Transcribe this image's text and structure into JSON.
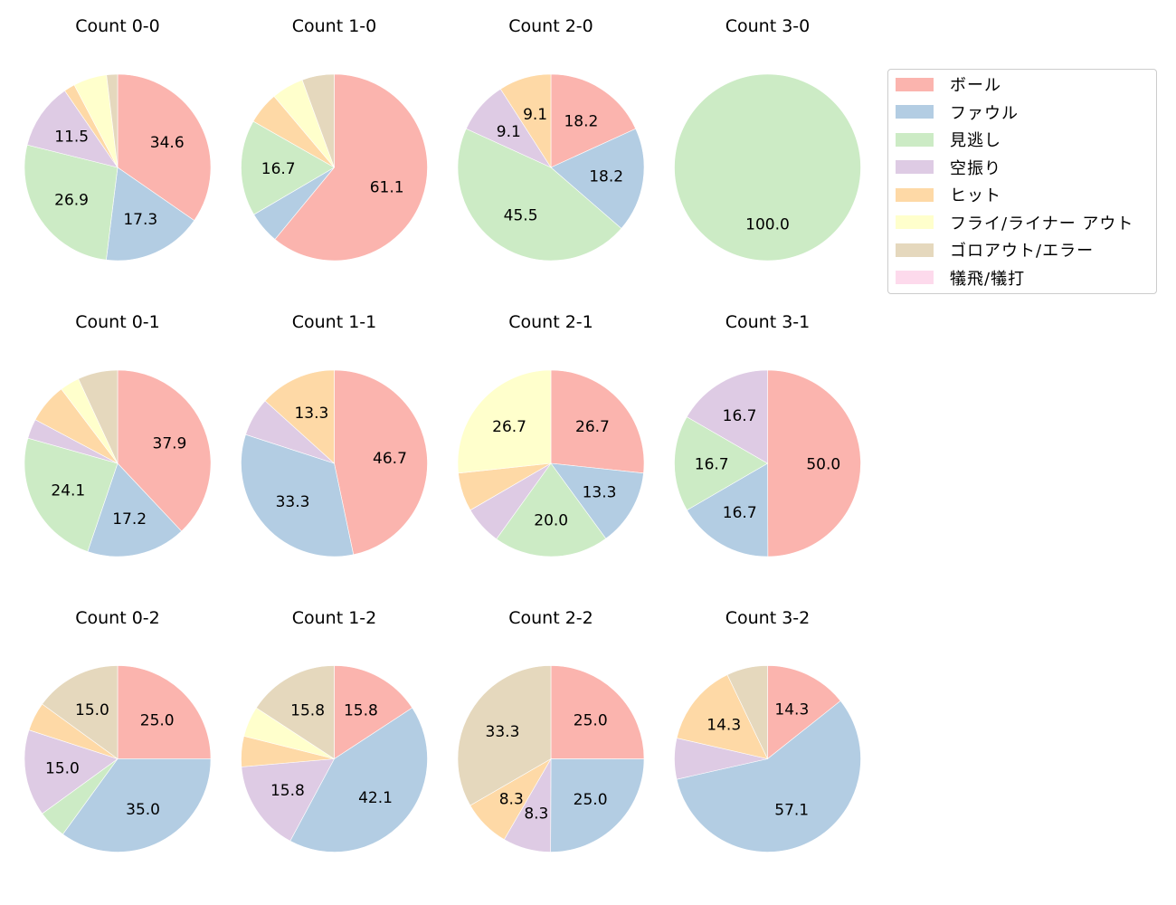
{
  "chart_data": {
    "type": "pie",
    "layout": {
      "rows": 3,
      "cols": 4,
      "start_angle": 90,
      "direction": "clockwise",
      "value_format": "%.1f",
      "legend_position": "upper right (outside)"
    },
    "categories": [
      "ボール",
      "ファウル",
      "見逃し",
      "空振り",
      "ヒット",
      "フライ/ライナー アウト",
      "ゴロアウト/エラー",
      "犠飛/犠打"
    ],
    "colors": [
      "#fbb4ae",
      "#b3cde3",
      "#ccebc5",
      "#decbe4",
      "#fed9a6",
      "#ffffcc",
      "#e5d8bd",
      "#fddaec"
    ],
    "charts": [
      {
        "title": "Count 0-0",
        "values": [
          34.6,
          17.3,
          26.9,
          11.5,
          1.9,
          5.8,
          1.9,
          0
        ],
        "labels": [
          "34.6",
          "17.3",
          "26.9",
          "11.5",
          "",
          "",
          "",
          ""
        ]
      },
      {
        "title": "Count 1-0",
        "values": [
          61.1,
          5.6,
          16.7,
          0,
          5.6,
          5.6,
          5.6,
          0
        ],
        "labels": [
          "61.1",
          "",
          "16.7",
          "",
          "",
          "",
          "",
          ""
        ]
      },
      {
        "title": "Count 2-0",
        "values": [
          18.2,
          18.2,
          45.5,
          9.1,
          9.1,
          0,
          0,
          0
        ],
        "labels": [
          "18.2",
          "18.2",
          "45.5",
          "9.1",
          "9.1",
          "",
          "",
          ""
        ]
      },
      {
        "title": "Count 3-0",
        "values": [
          0,
          0,
          100.0,
          0,
          0,
          0,
          0,
          0
        ],
        "labels": [
          "",
          "",
          "100.0",
          "",
          "",
          "",
          "",
          ""
        ]
      },
      {
        "title": "Count 0-1",
        "values": [
          37.9,
          17.2,
          24.1,
          3.4,
          6.9,
          3.4,
          6.9,
          0
        ],
        "labels": [
          "37.9",
          "17.2",
          "24.1",
          "",
          "",
          "",
          "",
          ""
        ]
      },
      {
        "title": "Count 1-1",
        "values": [
          46.7,
          33.3,
          0,
          6.7,
          13.3,
          0,
          0,
          0
        ],
        "labels": [
          "46.7",
          "33.3",
          "",
          "",
          "13.3",
          "",
          "",
          ""
        ]
      },
      {
        "title": "Count 2-1",
        "values": [
          26.7,
          13.3,
          20.0,
          6.7,
          6.7,
          26.7,
          0,
          0
        ],
        "labels": [
          "26.7",
          "13.3",
          "20.0",
          "",
          "",
          "26.7",
          "",
          ""
        ]
      },
      {
        "title": "Count 3-1",
        "values": [
          50.0,
          16.7,
          16.7,
          16.7,
          0,
          0,
          0,
          0
        ],
        "labels": [
          "50.0",
          "16.7",
          "16.7",
          "16.7",
          "",
          "",
          "",
          ""
        ]
      },
      {
        "title": "Count 0-2",
        "values": [
          25.0,
          35.0,
          5.0,
          15.0,
          5.0,
          0,
          15.0,
          0
        ],
        "labels": [
          "25.0",
          "35.0",
          "",
          "15.0",
          "",
          "",
          "15.0",
          ""
        ]
      },
      {
        "title": "Count 1-2",
        "values": [
          15.8,
          42.1,
          0,
          15.8,
          5.3,
          5.3,
          15.8,
          0
        ],
        "labels": [
          "15.8",
          "42.1",
          "",
          "15.8",
          "",
          "",
          "15.8",
          ""
        ]
      },
      {
        "title": "Count 2-2",
        "values": [
          25.0,
          25.0,
          0,
          8.3,
          8.3,
          0,
          33.3,
          0
        ],
        "labels": [
          "25.0",
          "25.0",
          "",
          "8.3",
          "8.3",
          "",
          "33.3",
          ""
        ]
      },
      {
        "title": "Count 3-2",
        "values": [
          14.3,
          57.1,
          0,
          7.1,
          14.3,
          0,
          7.1,
          0
        ],
        "labels": [
          "14.3",
          "57.1",
          "",
          "",
          "14.3",
          "",
          "",
          ""
        ]
      }
    ]
  },
  "legend": {
    "items": [
      {
        "label": "ボール",
        "color": "#fbb4ae"
      },
      {
        "label": "ファウル",
        "color": "#b3cde3"
      },
      {
        "label": "見逃し",
        "color": "#ccebc5"
      },
      {
        "label": "空振り",
        "color": "#decbe4"
      },
      {
        "label": "ヒット",
        "color": "#fed9a6"
      },
      {
        "label": "フライ/ライナー アウト",
        "color": "#ffffcc"
      },
      {
        "label": "ゴロアウト/エラー",
        "color": "#e5d8bd"
      },
      {
        "label": "犠飛/犠打",
        "color": "#fddaec"
      }
    ]
  }
}
